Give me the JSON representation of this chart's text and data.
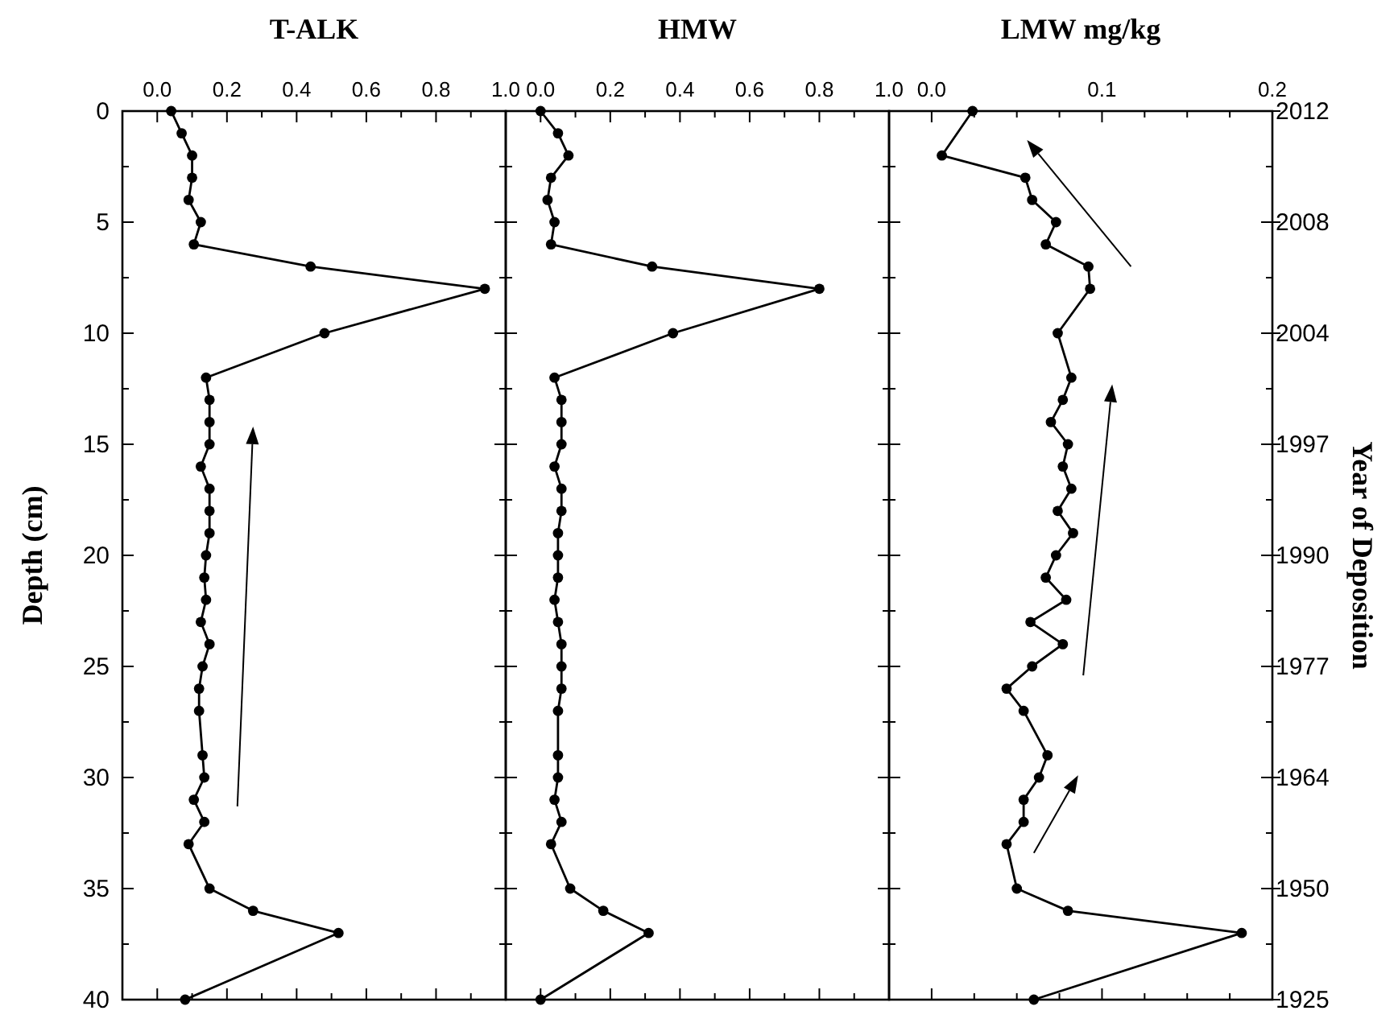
{
  "chart_data": [
    {
      "type": "line",
      "title": "T-ALK",
      "ylabel": "Depth (cm)",
      "xlim": [
        -0.1,
        1.0
      ],
      "xticks": [
        {
          "value": 0,
          "label": "0.0"
        },
        {
          "value": 0.1,
          "label": null
        },
        0.2,
        {
          "value": 0.3,
          "label": null
        },
        0.4,
        {
          "value": 0.5,
          "label": null
        },
        0.6,
        {
          "value": 0.7,
          "label": null
        },
        0.8,
        {
          "value": 0.9,
          "label": null
        },
        {
          "value": 1,
          "label": "1.0"
        }
      ],
      "ylim": [
        40,
        0
      ],
      "yticks": [
        0,
        {
          "value": 2.5,
          "label": null
        },
        5,
        {
          "value": 7.5,
          "label": null
        },
        10,
        {
          "value": 12.5,
          "label": null
        },
        15,
        {
          "value": 17.5,
          "label": null
        },
        20,
        {
          "value": 22.5,
          "label": null
        },
        25,
        {
          "value": 27.5,
          "label": null
        },
        30,
        {
          "value": 32.5,
          "label": null
        },
        35,
        {
          "value": 37.5,
          "label": null
        },
        40
      ],
      "marker": "circle",
      "line_style": "solid",
      "series": [
        {
          "color": "#000000",
          "x": [
            0.04,
            0.07,
            0.1,
            0.1,
            0.09,
            0.125,
            0.105,
            0.44,
            0.94,
            0.48,
            0.14,
            0.15,
            0.15,
            0.15,
            0.125,
            0.15,
            0.15,
            0.15,
            0.14,
            0.135,
            0.14,
            0.125,
            0.15,
            0.13,
            0.12,
            0.12,
            0.13,
            0.135,
            0.105,
            0.135,
            0.09,
            0.15,
            0.275,
            0.52,
            0.08
          ],
          "values": [
            0,
            1,
            2,
            3,
            4,
            5,
            6,
            7,
            8,
            10,
            12,
            13,
            14,
            15,
            16,
            17,
            18,
            19,
            20,
            21,
            22,
            23,
            24,
            25,
            26,
            27,
            29,
            30,
            31,
            32,
            33,
            35,
            36,
            37,
            40
          ]
        }
      ]
    },
    {
      "type": "line",
      "title": "HMW",
      "xlim": [
        -0.1,
        1.0
      ],
      "xticks": [
        {
          "value": 0,
          "label": "0.0"
        },
        {
          "value": 0.1,
          "label": null
        },
        0.2,
        {
          "value": 0.3,
          "label": null
        },
        0.4,
        {
          "value": 0.5,
          "label": null
        },
        0.6,
        {
          "value": 0.7,
          "label": null
        },
        0.8,
        {
          "value": 0.9,
          "label": null
        },
        {
          "value": 1,
          "label": "1.0"
        }
      ],
      "ylim": [
        40,
        0
      ],
      "yticks": [
        0,
        {
          "value": 2.5,
          "label": null
        },
        5,
        {
          "value": 7.5,
          "label": null
        },
        10,
        {
          "value": 12.5,
          "label": null
        },
        15,
        {
          "value": 17.5,
          "label": null
        },
        20,
        {
          "value": 22.5,
          "label": null
        },
        25,
        {
          "value": 27.5,
          "label": null
        },
        30,
        {
          "value": 32.5,
          "label": null
        },
        35,
        {
          "value": 37.5,
          "label": null
        },
        40
      ],
      "tick_labels": "x",
      "marker": "circle",
      "line_style": "solid",
      "series": [
        {
          "color": "#000000",
          "x": [
            0.0,
            0.05,
            0.08,
            0.03,
            0.02,
            0.04,
            0.03,
            0.32,
            0.8,
            0.38,
            0.04,
            0.06,
            0.06,
            0.06,
            0.04,
            0.06,
            0.06,
            0.05,
            0.05,
            0.05,
            0.04,
            0.05,
            0.06,
            0.06,
            0.06,
            0.05,
            0.05,
            0.05,
            0.04,
            0.06,
            0.03,
            0.085,
            0.18,
            0.31,
            0.0
          ],
          "values": [
            0,
            1,
            2,
            3,
            4,
            5,
            6,
            7,
            8,
            10,
            12,
            13,
            14,
            15,
            16,
            17,
            18,
            19,
            20,
            21,
            22,
            23,
            24,
            25,
            26,
            27,
            29,
            30,
            31,
            32,
            33,
            35,
            36,
            37,
            40
          ]
        }
      ]
    },
    {
      "type": "line",
      "title": "LMW mg/kg",
      "y2label": "Year of Deposition",
      "xlim": [
        -0.025,
        0.2
      ],
      "xticks": [
        {
          "value": 0,
          "label": "0.0"
        },
        {
          "value": 0.025,
          "label": null
        },
        {
          "value": 0.05,
          "label": null
        },
        {
          "value": 0.075,
          "label": null
        },
        0.1,
        {
          "value": 0.125,
          "label": null
        },
        {
          "value": 0.15,
          "label": null
        },
        {
          "value": 0.175,
          "label": null
        },
        0.2
      ],
      "ylim": [
        40,
        0
      ],
      "yticks": [
        0,
        {
          "value": 2.5,
          "label": null
        },
        5,
        {
          "value": 7.5,
          "label": null
        },
        10,
        {
          "value": 12.5,
          "label": null
        },
        15,
        {
          "value": 17.5,
          "label": null
        },
        20,
        {
          "value": 22.5,
          "label": null
        },
        25,
        {
          "value": 27.5,
          "label": null
        },
        30,
        {
          "value": 32.5,
          "label": null
        },
        35,
        {
          "value": 37.5,
          "label": null
        },
        40
      ],
      "tick_labels": "x",
      "annotations": [
        "2012",
        "2008",
        "2004",
        "1997",
        "1990",
        "1977",
        "1964",
        "1950",
        "1925"
      ],
      "marker": "circle",
      "line_style": "solid",
      "series": [
        {
          "color": "#000000",
          "x": [
            0.024,
            0.006,
            0.055,
            0.059,
            0.073,
            0.067,
            0.092,
            0.093,
            0.074,
            0.082,
            0.077,
            0.07,
            0.08,
            0.077,
            0.082,
            0.074,
            0.083,
            0.073,
            0.067,
            0.079,
            0.058,
            0.077,
            0.059,
            0.044,
            0.054,
            0.068,
            0.063,
            0.054,
            0.054,
            0.044,
            0.05,
            0.08,
            0.182,
            0.06
          ],
          "values": [
            0,
            2,
            3,
            4,
            5,
            6,
            7,
            8,
            10,
            12,
            13,
            14,
            15,
            16,
            17,
            18,
            19,
            20,
            21,
            22,
            23,
            24,
            25,
            26,
            27,
            29,
            30,
            31,
            32,
            33,
            35,
            36,
            37,
            40
          ]
        }
      ]
    }
  ]
}
